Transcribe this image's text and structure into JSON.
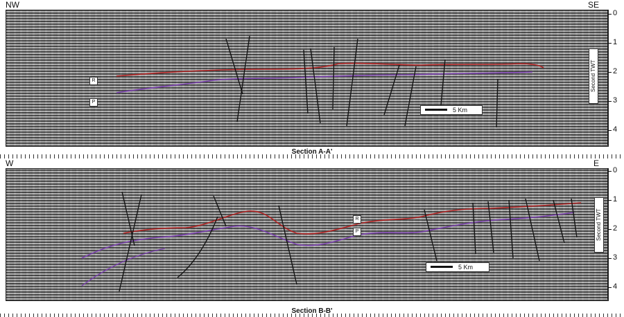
{
  "section_a": {
    "title": "Section A-A'",
    "direction_left": "NW",
    "direction_right": "SE",
    "axis_title": "Second TWT",
    "ticks": [
      "0",
      "1",
      "2",
      "3",
      "4"
    ],
    "scale_label": "5 Km",
    "horizon_r": "R",
    "horizon_p": "P"
  },
  "section_b": {
    "title": "Section B-B'",
    "direction_left": "W",
    "direction_right": "E",
    "axis_title": "Second TWT",
    "ticks": [
      "0",
      "1",
      "2",
      "3",
      "4"
    ],
    "scale_label": "5 Km",
    "horizon_r": "R",
    "horizon_p": "P"
  },
  "colors": {
    "horizon_r": "#b22222",
    "horizon_p": "#7b3fb0",
    "fault": "#141414"
  }
}
